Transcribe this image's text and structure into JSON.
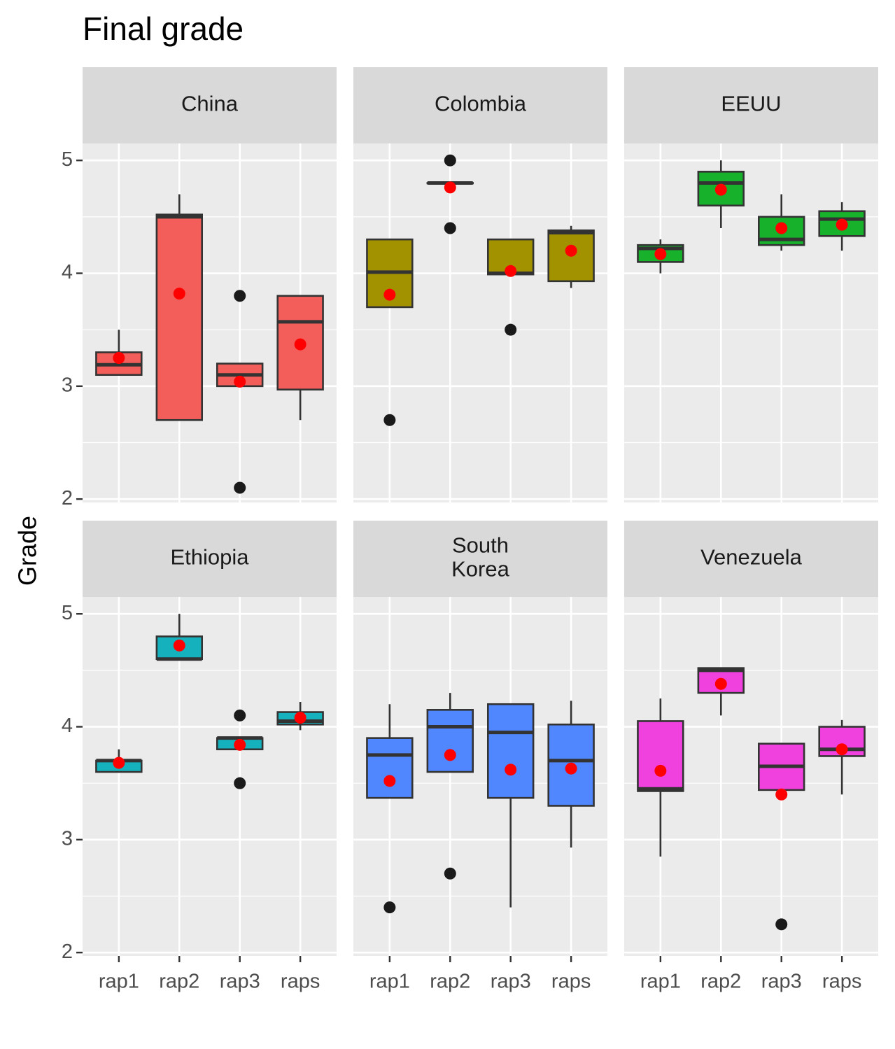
{
  "chart_data": {
    "type": "boxplot",
    "title": "Final grade",
    "y_label": "Grade",
    "categories": [
      "rap1",
      "rap2",
      "rap3",
      "raps"
    ],
    "ylim": [
      1.97,
      5.15
    ],
    "yticks": [
      2,
      3,
      4,
      5
    ],
    "grid": true,
    "facets": [
      {
        "name": "China",
        "color": "#F35E5A",
        "boxes": [
          {
            "min": 3.1,
            "q1": 3.1,
            "median": 3.19,
            "q3": 3.3,
            "max": 3.5,
            "mean": 3.25,
            "outliers": []
          },
          {
            "min": 2.7,
            "q1": 2.7,
            "median": 4.5,
            "q3": 4.52,
            "max": 4.7,
            "mean": 3.82,
            "outliers": []
          },
          {
            "min": 3.0,
            "q1": 3.0,
            "median": 3.1,
            "q3": 3.2,
            "max": 3.2,
            "mean": 3.04,
            "outliers": [
              3.8,
              2.1
            ]
          },
          {
            "min": 2.7,
            "q1": 2.97,
            "median": 3.57,
            "q3": 3.8,
            "max": 3.8,
            "mean": 3.37,
            "outliers": []
          }
        ]
      },
      {
        "name": "Colombia",
        "color": "#A39200",
        "boxes": [
          {
            "min": 3.7,
            "q1": 3.7,
            "median": 4.01,
            "q3": 4.3,
            "max": 4.3,
            "mean": 3.81,
            "outliers": [
              2.7
            ]
          },
          {
            "min": 4.8,
            "q1": 4.8,
            "median": 4.8,
            "q3": 4.8,
            "max": 4.8,
            "mean": 4.76,
            "outliers": [
              5.0,
              4.4
            ]
          },
          {
            "min": 3.99,
            "q1": 3.99,
            "median": 4.0,
            "q3": 4.3,
            "max": 4.3,
            "mean": 4.02,
            "outliers": [
              3.5
            ]
          },
          {
            "min": 3.87,
            "q1": 3.93,
            "median": 4.36,
            "q3": 4.38,
            "max": 4.42,
            "mean": 4.2,
            "outliers": []
          }
        ]
      },
      {
        "name": "EEUU",
        "color": "#17B12B",
        "boxes": [
          {
            "min": 4.0,
            "q1": 4.1,
            "median": 4.22,
            "q3": 4.25,
            "max": 4.3,
            "mean": 4.17,
            "outliers": []
          },
          {
            "min": 4.4,
            "q1": 4.6,
            "median": 4.8,
            "q3": 4.9,
            "max": 5.0,
            "mean": 4.74,
            "outliers": []
          },
          {
            "min": 4.2,
            "q1": 4.25,
            "median": 4.3,
            "q3": 4.5,
            "max": 4.7,
            "mean": 4.4,
            "outliers": []
          },
          {
            "min": 4.2,
            "q1": 4.33,
            "median": 4.48,
            "q3": 4.55,
            "max": 4.63,
            "mean": 4.43,
            "outliers": []
          }
        ]
      },
      {
        "name": "Ethiopia",
        "color": "#15B2BE",
        "boxes": [
          {
            "min": 3.6,
            "q1": 3.6,
            "median": 3.7,
            "q3": 3.7,
            "max": 3.8,
            "mean": 3.68,
            "outliers": []
          },
          {
            "min": 4.6,
            "q1": 4.6,
            "median": 4.6,
            "q3": 4.8,
            "max": 5.0,
            "mean": 4.72,
            "outliers": []
          },
          {
            "min": 3.8,
            "q1": 3.8,
            "median": 3.9,
            "q3": 3.9,
            "max": 3.9,
            "mean": 3.84,
            "outliers": [
              4.1,
              3.5
            ]
          },
          {
            "min": 3.97,
            "q1": 4.02,
            "median": 4.05,
            "q3": 4.13,
            "max": 4.22,
            "mean": 4.08,
            "outliers": []
          }
        ]
      },
      {
        "name": "South\nKorea",
        "color": "#5087FF",
        "boxes": [
          {
            "min": 3.37,
            "q1": 3.37,
            "median": 3.75,
            "q3": 3.9,
            "max": 4.2,
            "mean": 3.52,
            "outliers": [
              2.4
            ]
          },
          {
            "min": 3.6,
            "q1": 3.6,
            "median": 4.0,
            "q3": 4.15,
            "max": 4.3,
            "mean": 3.75,
            "outliers": [
              2.7
            ]
          },
          {
            "min": 2.4,
            "q1": 3.37,
            "median": 3.95,
            "q3": 4.2,
            "max": 4.2,
            "mean": 3.62,
            "outliers": []
          },
          {
            "min": 2.93,
            "q1": 3.3,
            "median": 3.7,
            "q3": 4.02,
            "max": 4.23,
            "mean": 3.63,
            "outliers": []
          }
        ]
      },
      {
        "name": "Venezuela",
        "color": "#F040DE",
        "boxes": [
          {
            "min": 2.85,
            "q1": 3.43,
            "median": 3.45,
            "q3": 4.05,
            "max": 4.25,
            "mean": 3.61,
            "outliers": []
          },
          {
            "min": 4.1,
            "q1": 4.3,
            "median": 4.5,
            "q3": 4.52,
            "max": 4.52,
            "mean": 4.38,
            "outliers": []
          },
          {
            "min": 3.44,
            "q1": 3.44,
            "median": 3.65,
            "q3": 3.85,
            "max": 3.85,
            "mean": 3.4,
            "outliers": [
              2.25
            ]
          },
          {
            "min": 3.4,
            "q1": 3.74,
            "median": 3.8,
            "q3": 4.0,
            "max": 4.06,
            "mean": 3.8,
            "outliers": []
          }
        ]
      }
    ]
  }
}
